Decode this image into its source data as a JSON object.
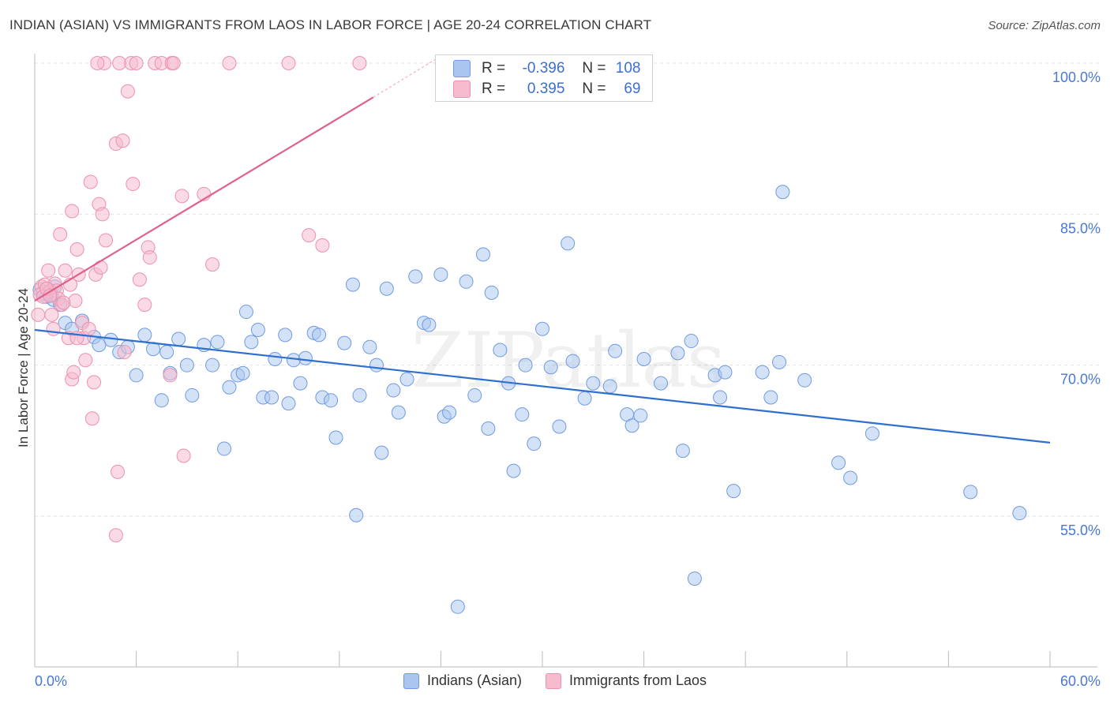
{
  "title": "INDIAN (ASIAN) VS IMMIGRANTS FROM LAOS IN LABOR FORCE | AGE 20-24 CORRELATION CHART",
  "source": "Source: ZipAtlas.com",
  "watermark": "ZIPatlas",
  "stats": {
    "row1": {
      "r_label": "R =",
      "r_value": "-0.396",
      "n_label": "N =",
      "n_value": "108"
    },
    "row2": {
      "r_label": "R =",
      "r_value": "0.395",
      "n_label": "N =",
      "n_value": "69"
    }
  },
  "legend": {
    "series1": "Indians (Asian)",
    "series2": "Immigrants from Laos"
  },
  "colors": {
    "blue_fill": "#a9c6f0",
    "blue_stroke": "#6f9be0",
    "blue_line": "#2e6fd0",
    "pink_fill": "#f6bccd",
    "pink_stroke": "#ee90ad",
    "pink_line": "#e0608c",
    "tick_text": "#4a78d0",
    "grid": "#e2e2e2"
  },
  "chart_data": {
    "type": "scatter",
    "title": "INDIAN (ASIAN) VS IMMIGRANTS FROM LAOS IN LABOR FORCE | AGE 20-24 CORRELATION CHART",
    "xlabel": "",
    "ylabel": "In Labor Force | Age 20-24",
    "xlim": [
      0,
      60
    ],
    "ylim": [
      40,
      102
    ],
    "x_tick_labels": [
      "0.0%",
      "60.0%"
    ],
    "y_ticks": [
      55,
      70,
      85,
      100
    ],
    "y_tick_labels": [
      "55.0%",
      "70.0%",
      "85.0%",
      "100.0%"
    ],
    "grid": true,
    "legend_position": "bottom",
    "series": [
      {
        "name": "Indians (Asian)",
        "trend": {
          "x": [
            0,
            60
          ],
          "y": [
            73.5,
            62.3
          ]
        },
        "points": [
          [
            0.3,
            77.5
          ],
          [
            0.5,
            77.2
          ],
          [
            0.7,
            76.8
          ],
          [
            0.9,
            77.4
          ],
          [
            1.0,
            77.0
          ],
          [
            1.1,
            76.5
          ],
          [
            1.2,
            77.8
          ],
          [
            1.5,
            76.0
          ],
          [
            1.8,
            74.2
          ],
          [
            2.2,
            73.6
          ],
          [
            2.8,
            74.4
          ],
          [
            3.5,
            72.8
          ],
          [
            3.8,
            72.0
          ],
          [
            4.5,
            72.5
          ],
          [
            5.0,
            71.3
          ],
          [
            5.5,
            71.8
          ],
          [
            6.0,
            69.0
          ],
          [
            6.5,
            73.0
          ],
          [
            7.0,
            71.6
          ],
          [
            7.5,
            66.5
          ],
          [
            7.8,
            71.3
          ],
          [
            8.0,
            69.2
          ],
          [
            8.5,
            72.6
          ],
          [
            9.0,
            70.0
          ],
          [
            9.3,
            67.0
          ],
          [
            10.0,
            72.0
          ],
          [
            10.5,
            70.0
          ],
          [
            10.8,
            72.3
          ],
          [
            11.2,
            61.7
          ],
          [
            11.5,
            67.8
          ],
          [
            12.0,
            69.0
          ],
          [
            12.3,
            69.2
          ],
          [
            12.5,
            75.3
          ],
          [
            12.8,
            72.3
          ],
          [
            13.2,
            73.5
          ],
          [
            13.5,
            66.8
          ],
          [
            14.0,
            66.8
          ],
          [
            14.2,
            70.6
          ],
          [
            14.8,
            73.0
          ],
          [
            15.0,
            66.2
          ],
          [
            15.3,
            70.5
          ],
          [
            15.7,
            68.2
          ],
          [
            16.0,
            70.7
          ],
          [
            16.5,
            73.2
          ],
          [
            16.8,
            73.0
          ],
          [
            17.0,
            66.8
          ],
          [
            17.5,
            66.5
          ],
          [
            17.8,
            62.8
          ],
          [
            18.3,
            72.2
          ],
          [
            18.8,
            78.0
          ],
          [
            19.0,
            55.1
          ],
          [
            19.2,
            67.0
          ],
          [
            19.8,
            71.8
          ],
          [
            20.2,
            70.0
          ],
          [
            20.5,
            61.3
          ],
          [
            20.8,
            77.6
          ],
          [
            21.2,
            67.5
          ],
          [
            21.5,
            65.3
          ],
          [
            22.0,
            68.6
          ],
          [
            22.5,
            78.8
          ],
          [
            23.0,
            74.2
          ],
          [
            23.3,
            74.0
          ],
          [
            24.0,
            79.0
          ],
          [
            24.2,
            64.9
          ],
          [
            24.5,
            65.3
          ],
          [
            25.0,
            46.0
          ],
          [
            25.5,
            78.3
          ],
          [
            26.0,
            67.0
          ],
          [
            26.5,
            81.0
          ],
          [
            26.8,
            63.7
          ],
          [
            27.0,
            77.2
          ],
          [
            27.5,
            71.5
          ],
          [
            28.0,
            68.2
          ],
          [
            28.3,
            59.5
          ],
          [
            28.8,
            65.1
          ],
          [
            29.0,
            70.0
          ],
          [
            29.5,
            62.2
          ],
          [
            30.0,
            73.6
          ],
          [
            30.5,
            69.8
          ],
          [
            31.0,
            63.9
          ],
          [
            31.5,
            82.1
          ],
          [
            31.8,
            70.4
          ],
          [
            32.5,
            66.7
          ],
          [
            33.0,
            68.2
          ],
          [
            34.0,
            67.9
          ],
          [
            34.3,
            71.4
          ],
          [
            35.0,
            65.1
          ],
          [
            35.3,
            64.0
          ],
          [
            35.8,
            65.0
          ],
          [
            36.0,
            70.6
          ],
          [
            37.0,
            68.2
          ],
          [
            38.0,
            71.2
          ],
          [
            38.3,
            61.5
          ],
          [
            38.8,
            72.4
          ],
          [
            39.0,
            48.8
          ],
          [
            40.2,
            69.0
          ],
          [
            40.5,
            66.8
          ],
          [
            40.8,
            69.3
          ],
          [
            41.3,
            57.5
          ],
          [
            43.0,
            69.3
          ],
          [
            43.5,
            66.8
          ],
          [
            44.0,
            70.3
          ],
          [
            44.2,
            87.2
          ],
          [
            45.5,
            68.5
          ],
          [
            47.5,
            60.3
          ],
          [
            48.2,
            58.8
          ],
          [
            49.5,
            63.2
          ],
          [
            55.3,
            57.4
          ],
          [
            58.2,
            55.3
          ]
        ]
      },
      {
        "name": "Immigrants from Laos",
        "trend": {
          "x": [
            0,
            20
          ],
          "y": [
            76.4,
            96.6
          ]
        },
        "trend_dashed": {
          "x": [
            20,
            24
          ],
          "y": [
            96.6,
            100.7
          ]
        },
        "points": [
          [
            0.2,
            75.0
          ],
          [
            0.4,
            77.8
          ],
          [
            0.6,
            78.0
          ],
          [
            0.8,
            79.4
          ],
          [
            0.9,
            77.3
          ],
          [
            1.0,
            75.0
          ],
          [
            1.1,
            73.6
          ],
          [
            1.2,
            78.1
          ],
          [
            1.3,
            77.4
          ],
          [
            1.4,
            76.6
          ],
          [
            1.5,
            83.0
          ],
          [
            1.6,
            76.0
          ],
          [
            1.8,
            79.4
          ],
          [
            2.0,
            72.7
          ],
          [
            2.1,
            78.0
          ],
          [
            2.2,
            85.3
          ],
          [
            2.2,
            68.6
          ],
          [
            2.3,
            69.3
          ],
          [
            2.4,
            76.4
          ],
          [
            2.5,
            81.5
          ],
          [
            2.6,
            79.0
          ],
          [
            2.8,
            74.2
          ],
          [
            2.9,
            72.7
          ],
          [
            3.0,
            70.5
          ],
          [
            3.2,
            73.6
          ],
          [
            3.3,
            88.2
          ],
          [
            3.4,
            64.7
          ],
          [
            3.5,
            68.3
          ],
          [
            3.6,
            79.0
          ],
          [
            3.8,
            86.0
          ],
          [
            3.9,
            79.7
          ],
          [
            4.0,
            85.0
          ],
          [
            4.2,
            82.4
          ],
          [
            4.8,
            92.0
          ],
          [
            4.8,
            53.1
          ],
          [
            4.9,
            59.4
          ],
          [
            5.0,
            100.0
          ],
          [
            5.2,
            92.3
          ],
          [
            5.3,
            71.3
          ],
          [
            5.5,
            97.2
          ],
          [
            5.7,
            100.0
          ],
          [
            5.8,
            88.0
          ],
          [
            6.0,
            100.0
          ],
          [
            6.2,
            78.5
          ],
          [
            6.5,
            76.0
          ],
          [
            6.7,
            81.7
          ],
          [
            6.8,
            80.7
          ],
          [
            7.1,
            100.0
          ],
          [
            7.5,
            100.0
          ],
          [
            8.0,
            69.0
          ],
          [
            8.1,
            100.0
          ],
          [
            8.2,
            100.0
          ],
          [
            8.7,
            86.8
          ],
          [
            8.8,
            61.0
          ],
          [
            10.0,
            87.0
          ],
          [
            10.5,
            80.0
          ],
          [
            11.5,
            100.0
          ],
          [
            15.0,
            100.0
          ],
          [
            16.2,
            82.9
          ],
          [
            17.0,
            81.9
          ],
          [
            19.2,
            100.0
          ],
          [
            0.3,
            77.0
          ],
          [
            0.5,
            76.8
          ],
          [
            0.7,
            77.6
          ],
          [
            1.7,
            76.2
          ],
          [
            0.9,
            76.9
          ],
          [
            4.1,
            100.0
          ],
          [
            2.5,
            72.7
          ],
          [
            3.7,
            100.0
          ]
        ]
      }
    ]
  }
}
